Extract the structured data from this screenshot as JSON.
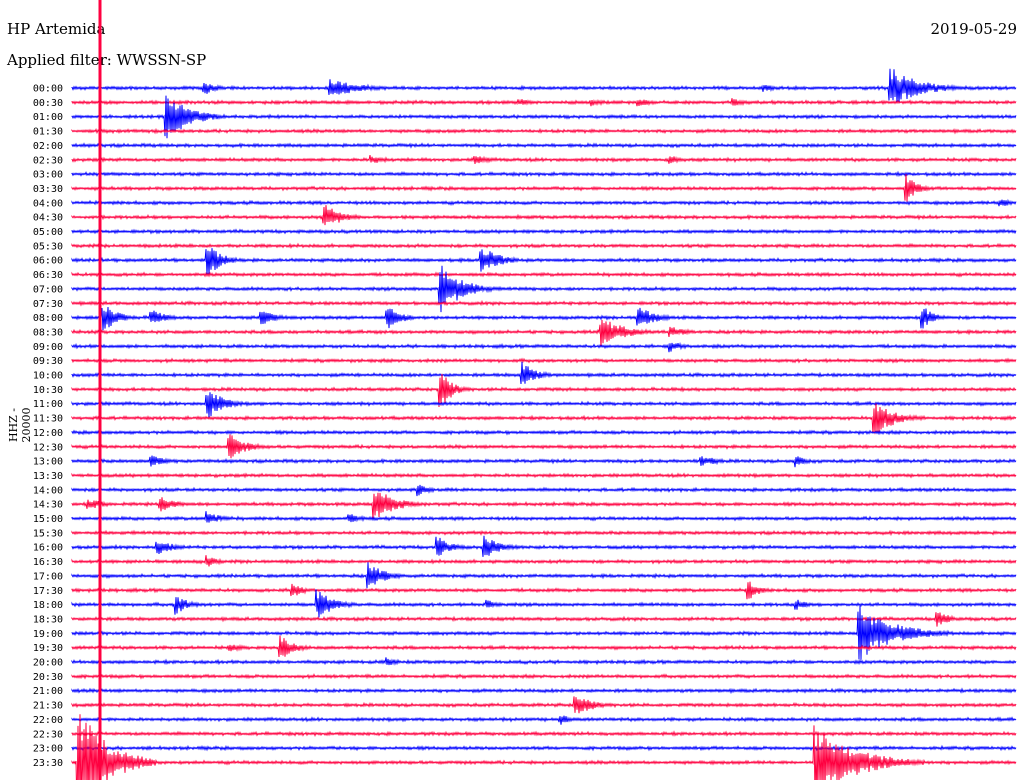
{
  "header": {
    "station": "HP Artemida",
    "filter": "Applied filter: WWSSN-SP",
    "date": "2019-05-29",
    "channel": "HHZ - 20000"
  },
  "colors": {
    "odd": "#0000ff",
    "even": "#ff0040"
  },
  "chart_data": {
    "type": "line",
    "description_type": "helicorder",
    "row_labels": [
      "00:00",
      "00:30",
      "01:00",
      "01:30",
      "02:00",
      "02:30",
      "03:00",
      "03:30",
      "04:00",
      "04:30",
      "05:00",
      "05:30",
      "06:00",
      "06:30",
      "07:00",
      "07:30",
      "08:00",
      "08:30",
      "09:00",
      "09:30",
      "10:00",
      "10:30",
      "11:00",
      "11:30",
      "12:00",
      "12:30",
      "13:00",
      "13:30",
      "14:00",
      "14:30",
      "15:00",
      "15:30",
      "16:00",
      "16:30",
      "17:00",
      "17:30",
      "18:00",
      "18:30",
      "19:00",
      "19:30",
      "20:00",
      "20:30",
      "21:00",
      "21:30",
      "22:00",
      "22:30",
      "23:00",
      "23:30"
    ],
    "row_colors": [
      "blue",
      "red"
    ],
    "minutes_per_row": 30,
    "events": [
      {
        "row": 0,
        "minute": 8.2,
        "amp": 10,
        "len": 2.5
      },
      {
        "row": 0,
        "minute": 4.2,
        "amp": 8,
        "len": 1.0
      },
      {
        "row": 0,
        "minute": 22.0,
        "amp": 4,
        "len": 1.2
      },
      {
        "row": 0,
        "minute": 26.0,
        "amp": 22,
        "len": 2.5
      },
      {
        "row": 1,
        "minute": 14.2,
        "amp": 4,
        "len": 1.2
      },
      {
        "row": 1,
        "minute": 16.5,
        "amp": 4,
        "len": 1.5
      },
      {
        "row": 1,
        "minute": 18.0,
        "amp": 4,
        "len": 1.5
      },
      {
        "row": 1,
        "minute": 21.0,
        "amp": 4,
        "len": 1.5
      },
      {
        "row": 2,
        "minute": 3.0,
        "amp": 25,
        "len": 2.0
      },
      {
        "row": 5,
        "minute": 9.5,
        "amp": 5,
        "len": 1.5
      },
      {
        "row": 5,
        "minute": 12.8,
        "amp": 5,
        "len": 1.5
      },
      {
        "row": 5,
        "minute": 19.0,
        "amp": 5,
        "len": 1.2
      },
      {
        "row": 7,
        "minute": 26.5,
        "amp": 15,
        "len": 1.0
      },
      {
        "row": 8,
        "minute": 29.5,
        "amp": 5,
        "len": 1.0
      },
      {
        "row": 9,
        "minute": 8.0,
        "amp": 14,
        "len": 1.5
      },
      {
        "row": 12,
        "minute": 4.3,
        "amp": 18,
        "len": 1.2
      },
      {
        "row": 12,
        "minute": 13.0,
        "amp": 16,
        "len": 1.5
      },
      {
        "row": 14,
        "minute": 11.7,
        "amp": 28,
        "len": 1.8
      },
      {
        "row": 16,
        "minute": 1.0,
        "amp": 16,
        "len": 1.2
      },
      {
        "row": 16,
        "minute": 2.5,
        "amp": 10,
        "len": 1.2
      },
      {
        "row": 16,
        "minute": 6.0,
        "amp": 8,
        "len": 1.5
      },
      {
        "row": 16,
        "minute": 10.0,
        "amp": 14,
        "len": 1.2
      },
      {
        "row": 16,
        "minute": 18.0,
        "amp": 12,
        "len": 1.5
      },
      {
        "row": 16,
        "minute": 27.0,
        "amp": 14,
        "len": 1.0
      },
      {
        "row": 17,
        "minute": 16.8,
        "amp": 16,
        "len": 2.0
      },
      {
        "row": 17,
        "minute": 19.0,
        "amp": 6,
        "len": 1.5
      },
      {
        "row": 18,
        "minute": 19.0,
        "amp": 6,
        "len": 1.2
      },
      {
        "row": 20,
        "minute": 14.3,
        "amp": 14,
        "len": 1.2
      },
      {
        "row": 21,
        "minute": 11.7,
        "amp": 22,
        "len": 1.0
      },
      {
        "row": 22,
        "minute": 4.3,
        "amp": 16,
        "len": 1.5
      },
      {
        "row": 23,
        "minute": 25.5,
        "amp": 18,
        "len": 1.8
      },
      {
        "row": 25,
        "minute": 5.0,
        "amp": 14,
        "len": 1.5
      },
      {
        "row": 26,
        "minute": 2.5,
        "amp": 6,
        "len": 1.5
      },
      {
        "row": 26,
        "minute": 20.0,
        "amp": 6,
        "len": 1.5
      },
      {
        "row": 26,
        "minute": 23.0,
        "amp": 6,
        "len": 1.0
      },
      {
        "row": 28,
        "minute": 11.0,
        "amp": 6,
        "len": 1.0
      },
      {
        "row": 29,
        "minute": 0.5,
        "amp": 6,
        "len": 1.5
      },
      {
        "row": 29,
        "minute": 2.8,
        "amp": 8,
        "len": 1.5
      },
      {
        "row": 29,
        "minute": 9.6,
        "amp": 18,
        "len": 1.8
      },
      {
        "row": 30,
        "minute": 4.3,
        "amp": 8,
        "len": 1.2
      },
      {
        "row": 30,
        "minute": 8.8,
        "amp": 6,
        "len": 1.0
      },
      {
        "row": 32,
        "minute": 2.7,
        "amp": 8,
        "len": 1.5
      },
      {
        "row": 32,
        "minute": 11.6,
        "amp": 12,
        "len": 1.2
      },
      {
        "row": 32,
        "minute": 13.1,
        "amp": 12,
        "len": 1.5
      },
      {
        "row": 33,
        "minute": 4.3,
        "amp": 6,
        "len": 1.0
      },
      {
        "row": 34,
        "minute": 9.4,
        "amp": 14,
        "len": 1.5
      },
      {
        "row": 35,
        "minute": 7.0,
        "amp": 8,
        "len": 1.0
      },
      {
        "row": 35,
        "minute": 21.5,
        "amp": 10,
        "len": 1.0
      },
      {
        "row": 36,
        "minute": 3.3,
        "amp": 10,
        "len": 1.2
      },
      {
        "row": 36,
        "minute": 7.8,
        "amp": 16,
        "len": 1.5
      },
      {
        "row": 36,
        "minute": 13.2,
        "amp": 5,
        "len": 1.0
      },
      {
        "row": 36,
        "minute": 23.0,
        "amp": 6,
        "len": 1.0
      },
      {
        "row": 37,
        "minute": 27.5,
        "amp": 10,
        "len": 1.0
      },
      {
        "row": 38,
        "minute": 25.0,
        "amp": 30,
        "len": 3.0
      },
      {
        "row": 39,
        "minute": 6.6,
        "amp": 14,
        "len": 1.2
      },
      {
        "row": 39,
        "minute": 5.0,
        "amp": 4,
        "len": 1.5
      },
      {
        "row": 40,
        "minute": 10.0,
        "amp": 5,
        "len": 1.0
      },
      {
        "row": 43,
        "minute": 16.0,
        "amp": 12,
        "len": 1.5
      },
      {
        "row": 44,
        "minute": 15.5,
        "amp": 6,
        "len": 1.0
      },
      {
        "row": 47,
        "minute": 0.2,
        "amp": 60,
        "len": 2.5
      },
      {
        "row": 47,
        "minute": 23.6,
        "amp": 40,
        "len": 3.5
      }
    ]
  }
}
